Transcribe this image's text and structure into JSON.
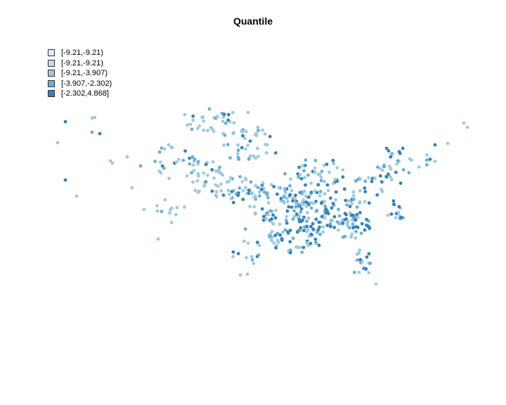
{
  "title": "Quantile",
  "legend": [
    {
      "label": "[-9.21,-9.21)",
      "color": "#deebf7"
    },
    {
      "label": "[-9.21,-9.21)",
      "color": "#c6dbef"
    },
    {
      "label": "[-9.21,-3.907)",
      "color": "#9ecae1"
    },
    {
      "label": "[-3.907,-2.302)",
      "color": "#6baed6"
    },
    {
      "label": "[-2.302,4.868]",
      "color": "#3182bd"
    }
  ],
  "colors": {
    "light": "#9ecae1",
    "mid": "#6baed6",
    "dark": "#3182bd"
  }
}
